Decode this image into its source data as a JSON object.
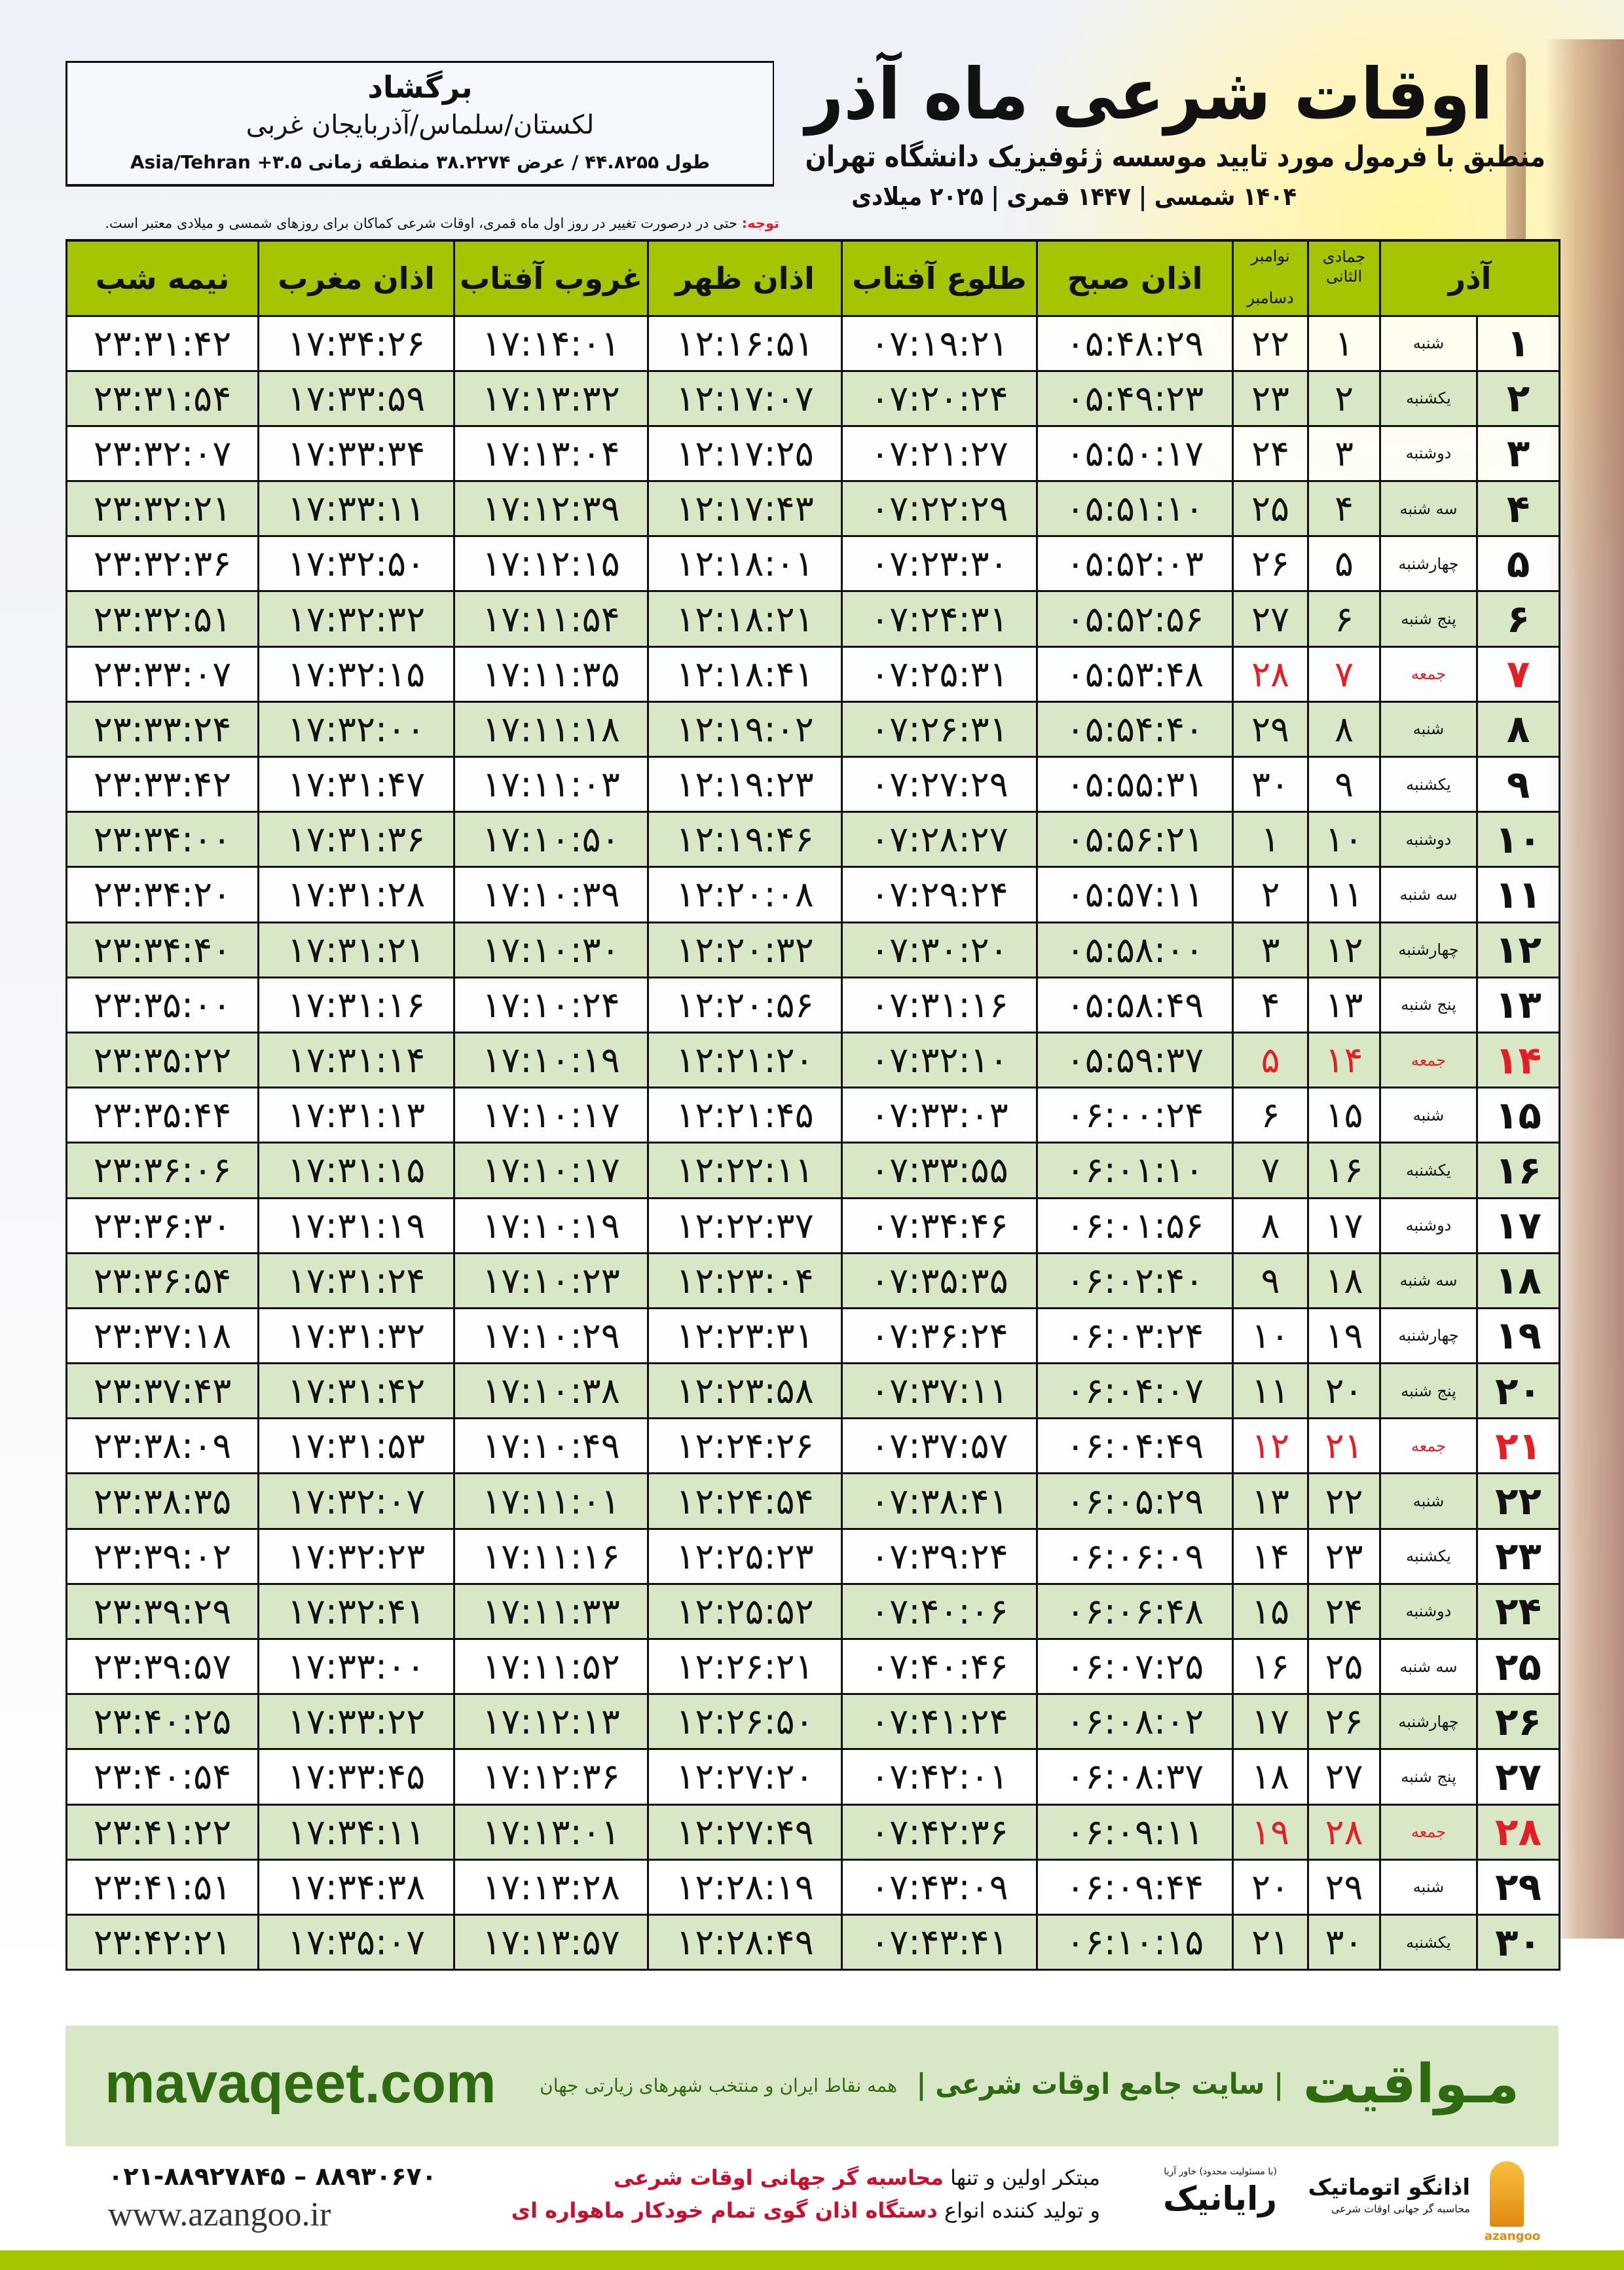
{
  "header": {
    "title": "اوقات شرعی ماه آذر",
    "subtitle": "منطبق با فرمول مورد تایید موسسه ژئوفیزیک دانشگاه تهران",
    "dates": "۱۴۰۴ شمسی | ۱۴۴۷ قمری | ۲۰۲۵ میلادی"
  },
  "location": {
    "city": "برگشاد",
    "region": "لکستان/سلماس/آذربایجان غربی",
    "coords": "طول ۴۴.۸۲۵۵ / عرض ۳۸.۲۲۷۴ منطقه زمانی ۳.۵+ Asia/Tehran"
  },
  "note": {
    "label": "توجه:",
    "text": " حتی در درصورت تغییر در روز اول ماه قمری، اوقات شرعی کماکان برای روزهای شمسی و میلادی معتبر است."
  },
  "colors": {
    "header_green": "#a6c400",
    "row_green": "#d8e8c6",
    "friday_red": "#e31e24",
    "brand_green": "#2e6b10"
  },
  "table": {
    "columns": {
      "month": "آذر",
      "hijri": "جمادی الثانی",
      "greg_top": "نوامبر",
      "greg_bottom": "دسامبر",
      "fajr": "اذان صبح",
      "sunrise": "طلوع آفتاب",
      "dhuhr": "اذان ظهر",
      "sunset": "غروب آفتاب",
      "maghrib": "اذان مغرب",
      "midnight": "نیمه شب"
    },
    "rows": [
      {
        "day": "۱",
        "weekday": "شنبه",
        "hijri": "۱",
        "greg": "۲۲",
        "fajr": "۰۵:۴۸:۲۹",
        "sunrise": "۰۷:۱۹:۲۱",
        "dhuhr": "۱۲:۱۶:۵۱",
        "sunset": "۱۷:۱۴:۰۱",
        "maghrib": "۱۷:۳۴:۲۶",
        "midnight": "۲۳:۳۱:۴۲"
      },
      {
        "day": "۲",
        "weekday": "یکشنبه",
        "hijri": "۲",
        "greg": "۲۳",
        "fajr": "۰۵:۴۹:۲۳",
        "sunrise": "۰۷:۲۰:۲۴",
        "dhuhr": "۱۲:۱۷:۰۷",
        "sunset": "۱۷:۱۳:۳۲",
        "maghrib": "۱۷:۳۳:۵۹",
        "midnight": "۲۳:۳۱:۵۴"
      },
      {
        "day": "۳",
        "weekday": "دوشنبه",
        "hijri": "۳",
        "greg": "۲۴",
        "fajr": "۰۵:۵۰:۱۷",
        "sunrise": "۰۷:۲۱:۲۷",
        "dhuhr": "۱۲:۱۷:۲۵",
        "sunset": "۱۷:۱۳:۰۴",
        "maghrib": "۱۷:۳۳:۳۴",
        "midnight": "۲۳:۳۲:۰۷"
      },
      {
        "day": "۴",
        "weekday": "سه شنبه",
        "hijri": "۴",
        "greg": "۲۵",
        "fajr": "۰۵:۵۱:۱۰",
        "sunrise": "۰۷:۲۲:۲۹",
        "dhuhr": "۱۲:۱۷:۴۳",
        "sunset": "۱۷:۱۲:۳۹",
        "maghrib": "۱۷:۳۳:۱۱",
        "midnight": "۲۳:۳۲:۲۱"
      },
      {
        "day": "۵",
        "weekday": "چهارشنبه",
        "hijri": "۵",
        "greg": "۲۶",
        "fajr": "۰۵:۵۲:۰۳",
        "sunrise": "۰۷:۲۳:۳۰",
        "dhuhr": "۱۲:۱۸:۰۱",
        "sunset": "۱۷:۱۲:۱۵",
        "maghrib": "۱۷:۳۲:۵۰",
        "midnight": "۲۳:۳۲:۳۶"
      },
      {
        "day": "۶",
        "weekday": "پنج شنبه",
        "hijri": "۶",
        "greg": "۲۷",
        "fajr": "۰۵:۵۲:۵۶",
        "sunrise": "۰۷:۲۴:۳۱",
        "dhuhr": "۱۲:۱۸:۲۱",
        "sunset": "۱۷:۱۱:۵۴",
        "maghrib": "۱۷:۳۲:۳۲",
        "midnight": "۲۳:۳۲:۵۱"
      },
      {
        "day": "۷",
        "weekday": "جمعه",
        "hijri": "۷",
        "greg": "۲۸",
        "fajr": "۰۵:۵۳:۴۸",
        "sunrise": "۰۷:۲۵:۳۱",
        "dhuhr": "۱۲:۱۸:۴۱",
        "sunset": "۱۷:۱۱:۳۵",
        "maghrib": "۱۷:۳۲:۱۵",
        "midnight": "۲۳:۳۳:۰۷",
        "friday": true
      },
      {
        "day": "۸",
        "weekday": "شنبه",
        "hijri": "۸",
        "greg": "۲۹",
        "fajr": "۰۵:۵۴:۴۰",
        "sunrise": "۰۷:۲۶:۳۱",
        "dhuhr": "۱۲:۱۹:۰۲",
        "sunset": "۱۷:۱۱:۱۸",
        "maghrib": "۱۷:۳۲:۰۰",
        "midnight": "۲۳:۳۳:۲۴"
      },
      {
        "day": "۹",
        "weekday": "یکشنبه",
        "hijri": "۹",
        "greg": "۳۰",
        "fajr": "۰۵:۵۵:۳۱",
        "sunrise": "۰۷:۲۷:۲۹",
        "dhuhr": "۱۲:۱۹:۲۳",
        "sunset": "۱۷:۱۱:۰۳",
        "maghrib": "۱۷:۳۱:۴۷",
        "midnight": "۲۳:۳۳:۴۲"
      },
      {
        "day": "۱۰",
        "weekday": "دوشنبه",
        "hijri": "۱۰",
        "greg": "۱",
        "fajr": "۰۵:۵۶:۲۱",
        "sunrise": "۰۷:۲۸:۲۷",
        "dhuhr": "۱۲:۱۹:۴۶",
        "sunset": "۱۷:۱۰:۵۰",
        "maghrib": "۱۷:۳۱:۳۶",
        "midnight": "۲۳:۳۴:۰۰"
      },
      {
        "day": "۱۱",
        "weekday": "سه شنبه",
        "hijri": "۱۱",
        "greg": "۲",
        "fajr": "۰۵:۵۷:۱۱",
        "sunrise": "۰۷:۲۹:۲۴",
        "dhuhr": "۱۲:۲۰:۰۸",
        "sunset": "۱۷:۱۰:۳۹",
        "maghrib": "۱۷:۳۱:۲۸",
        "midnight": "۲۳:۳۴:۲۰"
      },
      {
        "day": "۱۲",
        "weekday": "چهارشنبه",
        "hijri": "۱۲",
        "greg": "۳",
        "fajr": "۰۵:۵۸:۰۰",
        "sunrise": "۰۷:۳۰:۲۰",
        "dhuhr": "۱۲:۲۰:۳۲",
        "sunset": "۱۷:۱۰:۳۰",
        "maghrib": "۱۷:۳۱:۲۱",
        "midnight": "۲۳:۳۴:۴۰"
      },
      {
        "day": "۱۳",
        "weekday": "پنج شنبه",
        "hijri": "۱۳",
        "greg": "۴",
        "fajr": "۰۵:۵۸:۴۹",
        "sunrise": "۰۷:۳۱:۱۶",
        "dhuhr": "۱۲:۲۰:۵۶",
        "sunset": "۱۷:۱۰:۲۴",
        "maghrib": "۱۷:۳۱:۱۶",
        "midnight": "۲۳:۳۵:۰۰"
      },
      {
        "day": "۱۴",
        "weekday": "جمعه",
        "hijri": "۱۴",
        "greg": "۵",
        "fajr": "۰۵:۵۹:۳۷",
        "sunrise": "۰۷:۳۲:۱۰",
        "dhuhr": "۱۲:۲۱:۲۰",
        "sunset": "۱۷:۱۰:۱۹",
        "maghrib": "۱۷:۳۱:۱۴",
        "midnight": "۲۳:۳۵:۲۲",
        "friday": true
      },
      {
        "day": "۱۵",
        "weekday": "شنبه",
        "hijri": "۱۵",
        "greg": "۶",
        "fajr": "۰۶:۰۰:۲۴",
        "sunrise": "۰۷:۳۳:۰۳",
        "dhuhr": "۱۲:۲۱:۴۵",
        "sunset": "۱۷:۱۰:۱۷",
        "maghrib": "۱۷:۳۱:۱۳",
        "midnight": "۲۳:۳۵:۴۴"
      },
      {
        "day": "۱۶",
        "weekday": "یکشنبه",
        "hijri": "۱۶",
        "greg": "۷",
        "fajr": "۰۶:۰۱:۱۰",
        "sunrise": "۰۷:۳۳:۵۵",
        "dhuhr": "۱۲:۲۲:۱۱",
        "sunset": "۱۷:۱۰:۱۷",
        "maghrib": "۱۷:۳۱:۱۵",
        "midnight": "۲۳:۳۶:۰۶"
      },
      {
        "day": "۱۷",
        "weekday": "دوشنبه",
        "hijri": "۱۷",
        "greg": "۸",
        "fajr": "۰۶:۰۱:۵۶",
        "sunrise": "۰۷:۳۴:۴۶",
        "dhuhr": "۱۲:۲۲:۳۷",
        "sunset": "۱۷:۱۰:۱۹",
        "maghrib": "۱۷:۳۱:۱۹",
        "midnight": "۲۳:۳۶:۳۰"
      },
      {
        "day": "۱۸",
        "weekday": "سه شنبه",
        "hijri": "۱۸",
        "greg": "۹",
        "fajr": "۰۶:۰۲:۴۰",
        "sunrise": "۰۷:۳۵:۳۵",
        "dhuhr": "۱۲:۲۳:۰۴",
        "sunset": "۱۷:۱۰:۲۳",
        "maghrib": "۱۷:۳۱:۲۴",
        "midnight": "۲۳:۳۶:۵۴"
      },
      {
        "day": "۱۹",
        "weekday": "چهارشنبه",
        "hijri": "۱۹",
        "greg": "۱۰",
        "fajr": "۰۶:۰۳:۲۴",
        "sunrise": "۰۷:۳۶:۲۴",
        "dhuhr": "۱۲:۲۳:۳۱",
        "sunset": "۱۷:۱۰:۲۹",
        "maghrib": "۱۷:۳۱:۳۲",
        "midnight": "۲۳:۳۷:۱۸"
      },
      {
        "day": "۲۰",
        "weekday": "پنج شنبه",
        "hijri": "۲۰",
        "greg": "۱۱",
        "fajr": "۰۶:۰۴:۰۷",
        "sunrise": "۰۷:۳۷:۱۱",
        "dhuhr": "۱۲:۲۳:۵۸",
        "sunset": "۱۷:۱۰:۳۸",
        "maghrib": "۱۷:۳۱:۴۲",
        "midnight": "۲۳:۳۷:۴۳"
      },
      {
        "day": "۲۱",
        "weekday": "جمعه",
        "hijri": "۲۱",
        "greg": "۱۲",
        "fajr": "۰۶:۰۴:۴۹",
        "sunrise": "۰۷:۳۷:۵۷",
        "dhuhr": "۱۲:۲۴:۲۶",
        "sunset": "۱۷:۱۰:۴۹",
        "maghrib": "۱۷:۳۱:۵۳",
        "midnight": "۲۳:۳۸:۰۹",
        "friday": true
      },
      {
        "day": "۲۲",
        "weekday": "شنبه",
        "hijri": "۲۲",
        "greg": "۱۳",
        "fajr": "۰۶:۰۵:۲۹",
        "sunrise": "۰۷:۳۸:۴۱",
        "dhuhr": "۱۲:۲۴:۵۴",
        "sunset": "۱۷:۱۱:۰۱",
        "maghrib": "۱۷:۳۲:۰۷",
        "midnight": "۲۳:۳۸:۳۵"
      },
      {
        "day": "۲۳",
        "weekday": "یکشنبه",
        "hijri": "۲۳",
        "greg": "۱۴",
        "fajr": "۰۶:۰۶:۰۹",
        "sunrise": "۰۷:۳۹:۲۴",
        "dhuhr": "۱۲:۲۵:۲۳",
        "sunset": "۱۷:۱۱:۱۶",
        "maghrib": "۱۷:۳۲:۲۳",
        "midnight": "۲۳:۳۹:۰۲"
      },
      {
        "day": "۲۴",
        "weekday": "دوشنبه",
        "hijri": "۲۴",
        "greg": "۱۵",
        "fajr": "۰۶:۰۶:۴۸",
        "sunrise": "۰۷:۴۰:۰۶",
        "dhuhr": "۱۲:۲۵:۵۲",
        "sunset": "۱۷:۱۱:۳۳",
        "maghrib": "۱۷:۳۲:۴۱",
        "midnight": "۲۳:۳۹:۲۹"
      },
      {
        "day": "۲۵",
        "weekday": "سه شنبه",
        "hijri": "۲۵",
        "greg": "۱۶",
        "fajr": "۰۶:۰۷:۲۵",
        "sunrise": "۰۷:۴۰:۴۶",
        "dhuhr": "۱۲:۲۶:۲۱",
        "sunset": "۱۷:۱۱:۵۲",
        "maghrib": "۱۷:۳۳:۰۰",
        "midnight": "۲۳:۳۹:۵۷"
      },
      {
        "day": "۲۶",
        "weekday": "چهارشنبه",
        "hijri": "۲۶",
        "greg": "۱۷",
        "fajr": "۰۶:۰۸:۰۲",
        "sunrise": "۰۷:۴۱:۲۴",
        "dhuhr": "۱۲:۲۶:۵۰",
        "sunset": "۱۷:۱۲:۱۳",
        "maghrib": "۱۷:۳۳:۲۲",
        "midnight": "۲۳:۴۰:۲۵"
      },
      {
        "day": "۲۷",
        "weekday": "پنج شنبه",
        "hijri": "۲۷",
        "greg": "۱۸",
        "fajr": "۰۶:۰۸:۳۷",
        "sunrise": "۰۷:۴۲:۰۱",
        "dhuhr": "۱۲:۲۷:۲۰",
        "sunset": "۱۷:۱۲:۳۶",
        "maghrib": "۱۷:۳۳:۴۵",
        "midnight": "۲۳:۴۰:۵۴"
      },
      {
        "day": "۲۸",
        "weekday": "جمعه",
        "hijri": "۲۸",
        "greg": "۱۹",
        "fajr": "۰۶:۰۹:۱۱",
        "sunrise": "۰۷:۴۲:۳۶",
        "dhuhr": "۱۲:۲۷:۴۹",
        "sunset": "۱۷:۱۳:۰۱",
        "maghrib": "۱۷:۳۴:۱۱",
        "midnight": "۲۳:۴۱:۲۲",
        "friday": true
      },
      {
        "day": "۲۹",
        "weekday": "شنبه",
        "hijri": "۲۹",
        "greg": "۲۰",
        "fajr": "۰۶:۰۹:۴۴",
        "sunrise": "۰۷:۴۳:۰۹",
        "dhuhr": "۱۲:۲۸:۱۹",
        "sunset": "۱۷:۱۳:۲۸",
        "maghrib": "۱۷:۳۴:۳۸",
        "midnight": "۲۳:۴۱:۵۱"
      },
      {
        "day": "۳۰",
        "weekday": "یکشنبه",
        "hijri": "۳۰",
        "greg": "۲۱",
        "fajr": "۰۶:۱۰:۱۵",
        "sunrise": "۰۷:۴۳:۴۱",
        "dhuhr": "۱۲:۲۸:۴۹",
        "sunset": "۱۷:۱۳:۵۷",
        "maghrib": "۱۷:۳۵:۰۷",
        "midnight": "۲۳:۴۲:۲۱"
      }
    ]
  },
  "footer": {
    "logo": "مـواقیت",
    "slogan": "| سایت جامع اوقات شرعی |",
    "slogan2": "همه نقاط ایران و منتخب شهرهای زیارتی جهان",
    "site": "mavaqeet.com",
    "phone": "۰۲۱-۸۸۹۲۷۸۴۵ – ۸۸۹۳۰۶۷۰",
    "www": "www.azangoo.ir",
    "adv_line1_a": "مبتکر اولین و تنها ",
    "adv_line1_b": "محاسبه گر جهانی اوقات شرعی",
    "adv_line2_a": "و تولید کننده انواع ",
    "adv_line2_b": "دستگاه اذان گوی تمام خودکار ماهواره ای",
    "brand1": "رایانیک",
    "brand1_sub": "(با مسئولیت محدود) خاور آریا",
    "brand2": "اذانگو اتوماتیک",
    "brand2_sub": "محاسبه گر جهانی اوقات شرعی",
    "azangoo": "azangoo"
  }
}
